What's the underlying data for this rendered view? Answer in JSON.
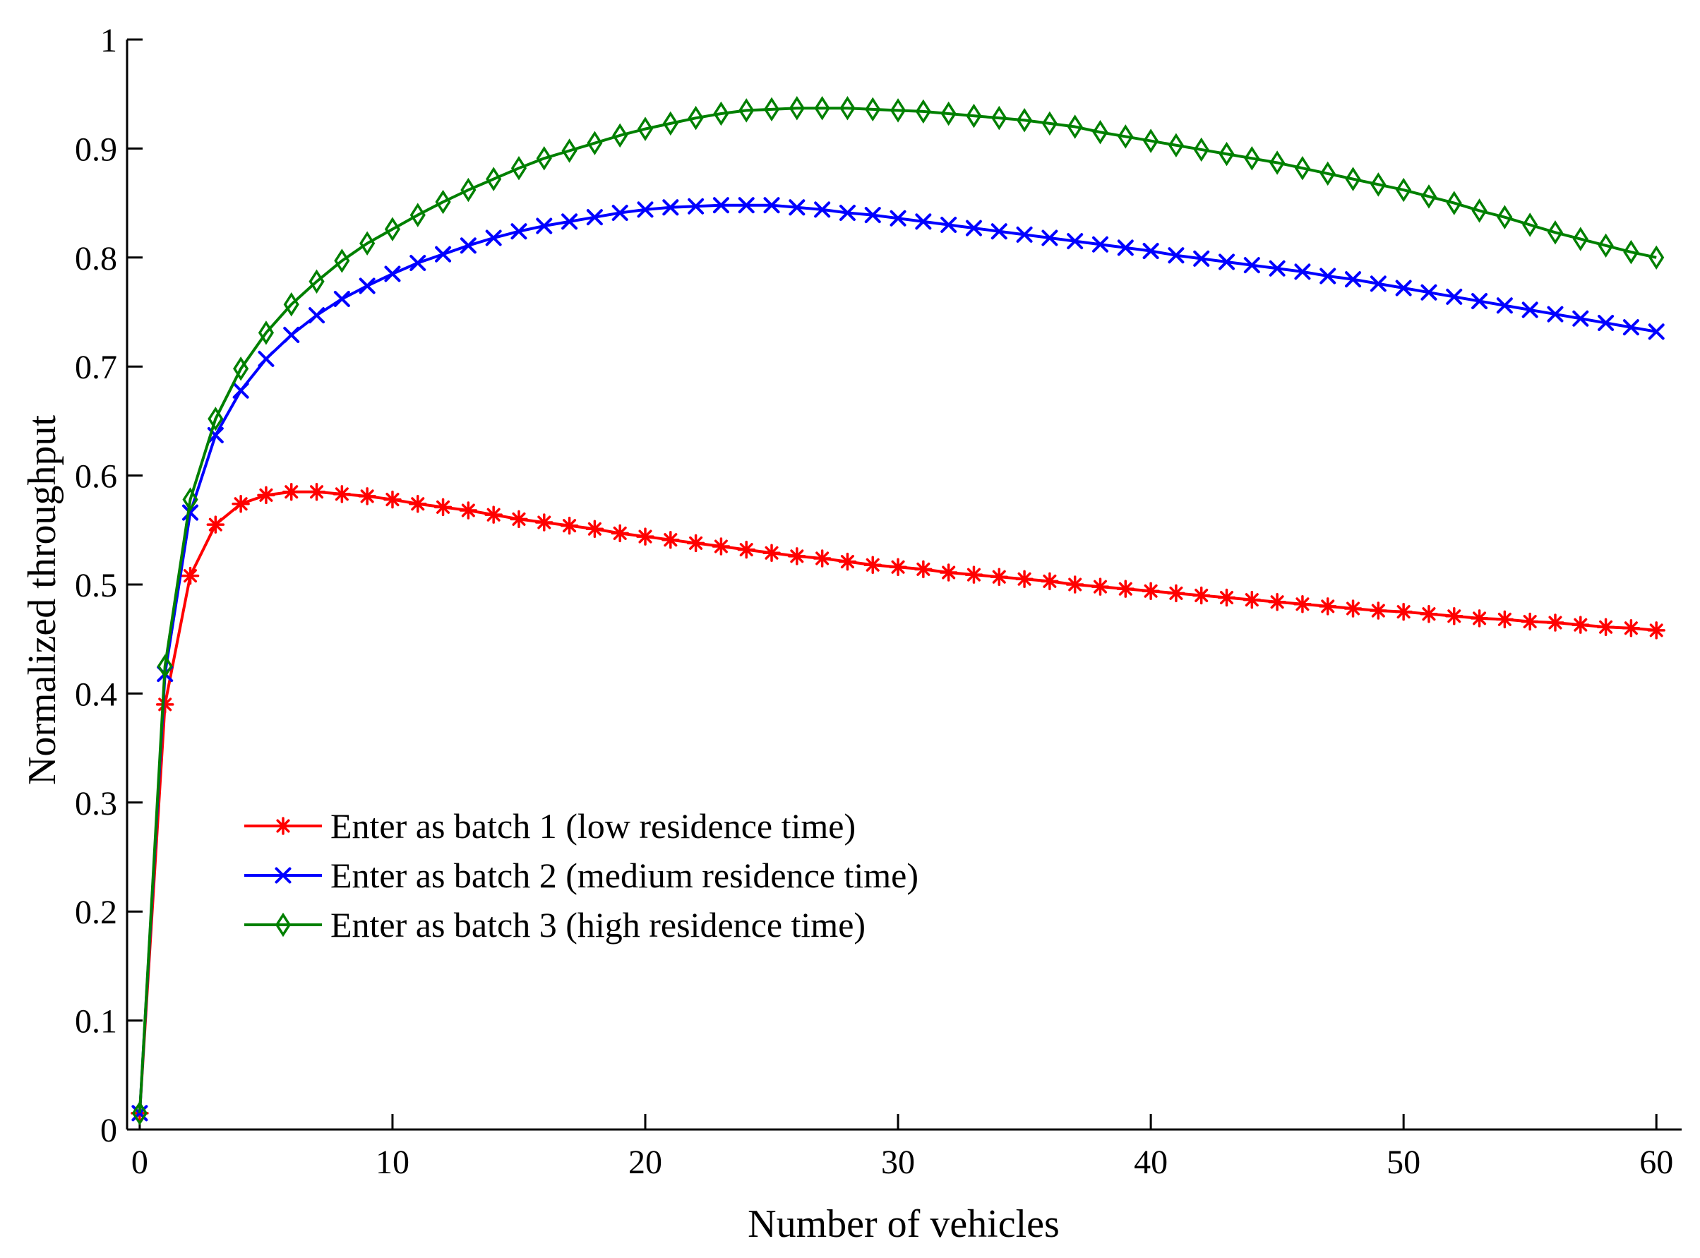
{
  "chart_data": {
    "type": "line",
    "title": "",
    "xlabel": "Number of vehicles",
    "ylabel": "Normalized throughput",
    "xlim": [
      -0.5,
      61
    ],
    "ylim": [
      0,
      1
    ],
    "xticks": [
      0,
      10,
      20,
      30,
      40,
      50,
      60
    ],
    "xtick_labels": [
      "0",
      "10",
      "20",
      "30",
      "40",
      "50",
      "60"
    ],
    "yticks": [
      0,
      0.1,
      0.2,
      0.3,
      0.4,
      0.5,
      0.6,
      0.7,
      0.8,
      0.9,
      1
    ],
    "ytick_labels": [
      "0",
      "0.1",
      "0.2",
      "0.3",
      "0.4",
      "0.5",
      "0.6",
      "0.7",
      "0.8",
      "0.9",
      "1"
    ],
    "grid": false,
    "legend_position": "lower-left",
    "x": [
      0,
      1,
      2,
      3,
      4,
      5,
      6,
      7,
      8,
      9,
      10,
      11,
      12,
      13,
      14,
      15,
      16,
      17,
      18,
      19,
      20,
      21,
      22,
      23,
      24,
      25,
      26,
      27,
      28,
      29,
      30,
      31,
      32,
      33,
      34,
      35,
      36,
      37,
      38,
      39,
      40,
      41,
      42,
      43,
      44,
      45,
      46,
      47,
      48,
      49,
      50,
      51,
      52,
      53,
      54,
      55,
      56,
      57,
      58,
      59,
      60
    ],
    "series": [
      {
        "name": "Enter as batch 1 (low residence time)",
        "color": "#ff0000",
        "marker": "asterisk",
        "values": [
          0.015,
          0.39,
          0.508,
          0.555,
          0.574,
          0.582,
          0.585,
          0.585,
          0.583,
          0.581,
          0.578,
          0.574,
          0.571,
          0.568,
          0.564,
          0.56,
          0.557,
          0.554,
          0.551,
          0.547,
          0.544,
          0.541,
          0.538,
          0.535,
          0.532,
          0.529,
          0.526,
          0.524,
          0.521,
          0.518,
          0.516,
          0.514,
          0.511,
          0.509,
          0.507,
          0.505,
          0.503,
          0.5,
          0.498,
          0.496,
          0.494,
          0.492,
          0.49,
          0.488,
          0.486,
          0.484,
          0.482,
          0.48,
          0.478,
          0.476,
          0.475,
          0.473,
          0.471,
          0.469,
          0.468,
          0.466,
          0.465,
          0.463,
          0.461,
          0.46,
          0.458
        ]
      },
      {
        "name": "Enter as batch 2 (medium residence time)",
        "color": "#0000ff",
        "marker": "x",
        "values": [
          0.015,
          0.418,
          0.566,
          0.637,
          0.678,
          0.707,
          0.729,
          0.747,
          0.762,
          0.774,
          0.785,
          0.795,
          0.803,
          0.811,
          0.818,
          0.824,
          0.829,
          0.833,
          0.837,
          0.841,
          0.844,
          0.846,
          0.847,
          0.848,
          0.848,
          0.848,
          0.846,
          0.844,
          0.841,
          0.839,
          0.836,
          0.833,
          0.83,
          0.827,
          0.824,
          0.821,
          0.818,
          0.815,
          0.812,
          0.809,
          0.806,
          0.802,
          0.799,
          0.796,
          0.793,
          0.79,
          0.787,
          0.783,
          0.78,
          0.776,
          0.772,
          0.768,
          0.764,
          0.76,
          0.756,
          0.752,
          0.748,
          0.744,
          0.74,
          0.736,
          0.732
        ]
      },
      {
        "name": "Enter as batch 3 (high residence time)",
        "color": "#008000",
        "marker": "diamond",
        "values": [
          0.015,
          0.425,
          0.578,
          0.652,
          0.698,
          0.731,
          0.757,
          0.778,
          0.797,
          0.813,
          0.826,
          0.839,
          0.851,
          0.862,
          0.872,
          0.882,
          0.891,
          0.898,
          0.905,
          0.912,
          0.918,
          0.923,
          0.928,
          0.932,
          0.935,
          0.936,
          0.937,
          0.937,
          0.937,
          0.936,
          0.935,
          0.934,
          0.932,
          0.93,
          0.928,
          0.926,
          0.923,
          0.92,
          0.915,
          0.911,
          0.907,
          0.903,
          0.899,
          0.895,
          0.891,
          0.887,
          0.882,
          0.877,
          0.872,
          0.867,
          0.862,
          0.856,
          0.85,
          0.843,
          0.837,
          0.83,
          0.823,
          0.817,
          0.811,
          0.805,
          0.8
        ]
      }
    ]
  }
}
